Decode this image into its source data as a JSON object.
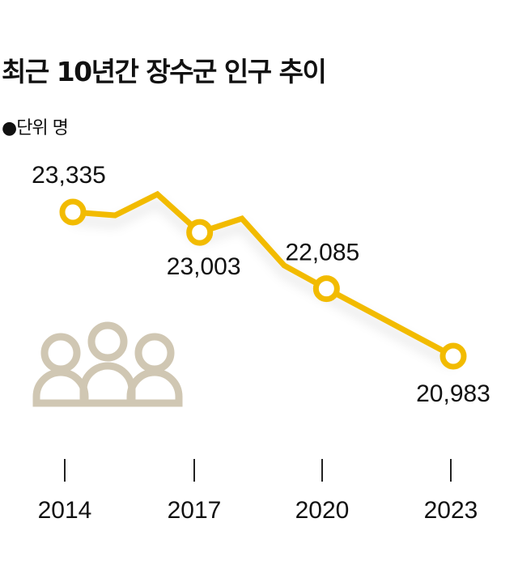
{
  "chart_data": {
    "type": "line",
    "title": "최근 10년간 장수군 인구 추이",
    "unit_label": "●단위 명",
    "x": [
      2014,
      2015,
      2016,
      2017,
      2018,
      2019,
      2020,
      2021,
      2022,
      2023
    ],
    "values": [
      23335,
      23282,
      23626,
      23003,
      23229,
      22463,
      22085,
      21718,
      21350,
      20983
    ],
    "labeled_points": [
      {
        "year": 2014,
        "label": "23,335"
      },
      {
        "year": 2017,
        "label": "23,003"
      },
      {
        "year": 2020,
        "label": "22,085"
      },
      {
        "year": 2023,
        "label": "20,983"
      }
    ],
    "x_tick_labels": [
      "2014",
      "2017",
      "2020",
      "2023"
    ],
    "xlabel": "",
    "ylabel": "",
    "grid": false,
    "colors": {
      "line": "#f2bb00",
      "icon": "#d0c7b3"
    },
    "icon": "people-group-icon"
  }
}
